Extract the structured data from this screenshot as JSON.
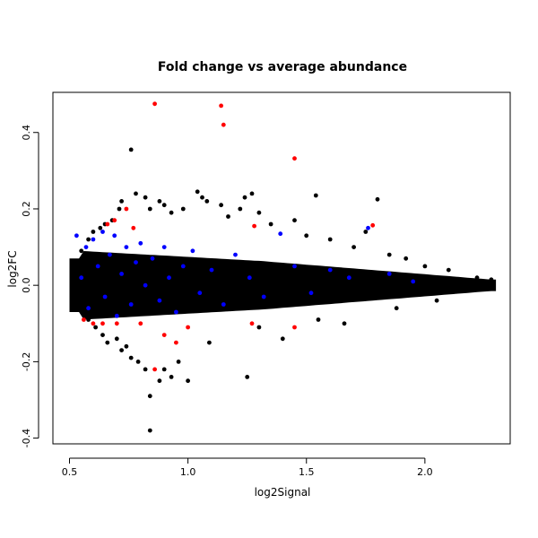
{
  "chart_data": {
    "type": "scatter",
    "title": "Fold change vs average abundance",
    "xlabel": "log2Signal",
    "ylabel": "log2FC",
    "xlim": [
      0.43,
      2.36
    ],
    "ylim": [
      -0.415,
      0.505
    ],
    "xticks": [
      0.5,
      1.0,
      1.5,
      2.0
    ],
    "xtick_labels": [
      "0.5",
      "1.0",
      "1.5",
      "2.0"
    ],
    "yticks": [
      -0.4,
      -0.2,
      0.0,
      0.2,
      0.4
    ],
    "ytick_labels": [
      "-0.4",
      "-0.2",
      "0.0",
      "0.2",
      "0.4"
    ],
    "grid": false,
    "legend": "none",
    "colors": {
      "black_series": "#000000",
      "blue_series": "#0000ff",
      "red_series": "#ff0000"
    },
    "series": [
      {
        "color": "#000000",
        "points": [
          [
            0.52,
            0.06
          ],
          [
            0.52,
            -0.02
          ],
          [
            0.55,
            0.09
          ],
          [
            0.55,
            -0.05
          ],
          [
            0.58,
            0.12
          ],
          [
            0.58,
            -0.09
          ],
          [
            0.6,
            0.14
          ],
          [
            0.61,
            -0.11
          ],
          [
            0.63,
            0.15
          ],
          [
            0.64,
            -0.13
          ],
          [
            0.65,
            0.16
          ],
          [
            0.66,
            -0.15
          ],
          [
            0.68,
            0.17
          ],
          [
            0.7,
            -0.14
          ],
          [
            0.71,
            0.2
          ],
          [
            0.72,
            0.22
          ],
          [
            0.72,
            -0.17
          ],
          [
            0.74,
            -0.16
          ],
          [
            0.76,
            0.355
          ],
          [
            0.76,
            -0.19
          ],
          [
            0.78,
            0.24
          ],
          [
            0.79,
            -0.2
          ],
          [
            0.82,
            0.23
          ],
          [
            0.82,
            -0.22
          ],
          [
            0.84,
            0.2
          ],
          [
            0.84,
            -0.29
          ],
          [
            0.84,
            -0.38
          ],
          [
            0.88,
            0.22
          ],
          [
            0.88,
            -0.25
          ],
          [
            0.9,
            0.21
          ],
          [
            0.9,
            -0.22
          ],
          [
            0.93,
            0.19
          ],
          [
            0.93,
            -0.24
          ],
          [
            0.96,
            -0.2
          ],
          [
            0.98,
            0.2
          ],
          [
            1.0,
            -0.25
          ],
          [
            1.04,
            0.245
          ],
          [
            1.06,
            0.23
          ],
          [
            1.08,
            0.22
          ],
          [
            1.09,
            -0.15
          ],
          [
            1.14,
            0.21
          ],
          [
            1.17,
            0.18
          ],
          [
            1.22,
            0.2
          ],
          [
            1.24,
            0.23
          ],
          [
            1.25,
            -0.24
          ],
          [
            1.27,
            0.24
          ],
          [
            1.3,
            0.19
          ],
          [
            1.3,
            -0.11
          ],
          [
            1.35,
            0.16
          ],
          [
            1.4,
            -0.14
          ],
          [
            1.45,
            0.17
          ],
          [
            1.5,
            0.13
          ],
          [
            1.54,
            0.235
          ],
          [
            1.55,
            -0.09
          ],
          [
            1.6,
            0.12
          ],
          [
            1.66,
            -0.1
          ],
          [
            1.7,
            0.1
          ],
          [
            1.75,
            0.14
          ],
          [
            1.8,
            0.225
          ],
          [
            1.85,
            0.08
          ],
          [
            1.88,
            -0.06
          ],
          [
            1.92,
            0.07
          ],
          [
            2.0,
            0.05
          ],
          [
            2.05,
            -0.04
          ],
          [
            2.1,
            0.04
          ],
          [
            2.22,
            0.02
          ],
          [
            2.28,
            0.015
          ]
        ]
      },
      {
        "color": "#0000ff",
        "points": [
          [
            0.53,
            0.13
          ],
          [
            0.55,
            0.02
          ],
          [
            0.57,
            0.1
          ],
          [
            0.58,
            -0.06
          ],
          [
            0.6,
            0.12
          ],
          [
            0.62,
            0.05
          ],
          [
            0.64,
            0.14
          ],
          [
            0.65,
            -0.03
          ],
          [
            0.67,
            0.08
          ],
          [
            0.69,
            0.13
          ],
          [
            0.7,
            -0.08
          ],
          [
            0.72,
            0.03
          ],
          [
            0.74,
            0.1
          ],
          [
            0.76,
            -0.05
          ],
          [
            0.78,
            0.06
          ],
          [
            0.8,
            0.11
          ],
          [
            0.82,
            0.0
          ],
          [
            0.85,
            0.07
          ],
          [
            0.88,
            -0.04
          ],
          [
            0.9,
            0.1
          ],
          [
            0.92,
            0.02
          ],
          [
            0.95,
            -0.07
          ],
          [
            0.98,
            0.05
          ],
          [
            1.02,
            0.09
          ],
          [
            1.05,
            -0.02
          ],
          [
            1.1,
            0.04
          ],
          [
            1.15,
            -0.05
          ],
          [
            1.2,
            0.08
          ],
          [
            1.26,
            0.02
          ],
          [
            1.32,
            -0.03
          ],
          [
            1.39,
            0.135
          ],
          [
            1.45,
            0.05
          ],
          [
            1.52,
            -0.02
          ],
          [
            1.6,
            0.04
          ],
          [
            1.68,
            0.02
          ],
          [
            1.76,
            0.15
          ],
          [
            1.85,
            0.03
          ],
          [
            1.95,
            0.01
          ]
        ]
      },
      {
        "color": "#ff0000",
        "points": [
          [
            0.86,
            0.475
          ],
          [
            1.14,
            0.47
          ],
          [
            1.15,
            0.42
          ],
          [
            1.45,
            0.332
          ],
          [
            0.66,
            0.16
          ],
          [
            0.69,
            0.17
          ],
          [
            0.74,
            0.2
          ],
          [
            0.77,
            0.15
          ],
          [
            1.28,
            0.155
          ],
          [
            1.78,
            0.157
          ],
          [
            0.56,
            -0.09
          ],
          [
            0.6,
            -0.1
          ],
          [
            0.64,
            -0.1
          ],
          [
            0.7,
            -0.1
          ],
          [
            0.8,
            -0.1
          ],
          [
            0.9,
            -0.13
          ],
          [
            0.95,
            -0.15
          ],
          [
            0.86,
            -0.22
          ],
          [
            1.0,
            -0.11
          ],
          [
            1.45,
            -0.11
          ],
          [
            1.27,
            -0.1
          ]
        ]
      }
    ]
  }
}
